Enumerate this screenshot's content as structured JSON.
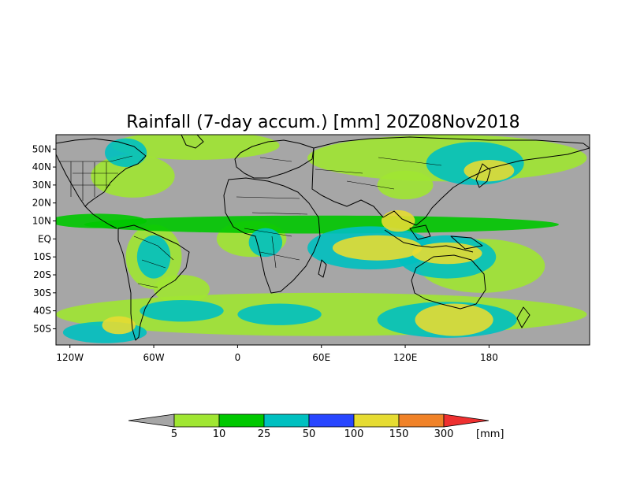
{
  "title": "Rainfall (7-day accum.) [mm] 20Z08Nov2018",
  "map": {
    "projection": "equirectangular",
    "lon_range": [
      -130,
      252
    ],
    "lat_range": [
      -59,
      58
    ],
    "land_color": "#a6a6a6",
    "ocean_dry_color": "#a6a6a6",
    "x_ticks": [
      {
        "lon": -120,
        "label": "120W"
      },
      {
        "lon": -60,
        "label": "60W"
      },
      {
        "lon": 0,
        "label": "0"
      },
      {
        "lon": 60,
        "label": "60E"
      },
      {
        "lon": 120,
        "label": "120E"
      },
      {
        "lon": 180,
        "label": "180"
      }
    ],
    "y_ticks": [
      {
        "lat": 50,
        "label": "50N"
      },
      {
        "lat": 40,
        "label": "40N"
      },
      {
        "lat": 30,
        "label": "30N"
      },
      {
        "lat": 20,
        "label": "20N"
      },
      {
        "lat": 10,
        "label": "10N"
      },
      {
        "lat": 0,
        "label": "EQ"
      },
      {
        "lat": -10,
        "label": "10S"
      },
      {
        "lat": -20,
        "label": "20S"
      },
      {
        "lat": -30,
        "label": "30S"
      },
      {
        "lat": -40,
        "label": "40S"
      },
      {
        "lat": -50,
        "label": "50S"
      }
    ]
  },
  "colorbar": {
    "unit": "[mm]",
    "under_color": "#a6a6a6",
    "over_color": "#ee3030",
    "bins": [
      {
        "color": "#a0e632"
      },
      {
        "color": "#00c800"
      },
      {
        "color": "#00c0c0"
      },
      {
        "color": "#2846ff"
      },
      {
        "color": "#e6dc32"
      },
      {
        "color": "#f08228"
      }
    ],
    "thresholds": [
      "5",
      "10",
      "25",
      "50",
      "100",
      "150",
      "300"
    ]
  },
  "rain_regions": [
    {
      "lon": 100,
      "lat": -5,
      "rlon": 32,
      "rlat": 7,
      "level": 5
    },
    {
      "lon": 150,
      "lat": -8,
      "rlon": 25,
      "rlat": 6,
      "level": 5
    },
    {
      "lon": 155,
      "lat": -45,
      "rlon": 28,
      "rlat": 9,
      "level": 5
    },
    {
      "lon": 180,
      "lat": 38,
      "rlon": 18,
      "rlat": 6,
      "level": 5
    },
    {
      "lon": -85,
      "lat": -48,
      "rlon": 12,
      "rlat": 5,
      "level": 5
    },
    {
      "lon": 115,
      "lat": 10,
      "rlon": 12,
      "rlat": 6,
      "level": 5
    },
    {
      "lon": 95,
      "lat": -5,
      "rlon": 45,
      "rlat": 12,
      "level": 3
    },
    {
      "lon": 150,
      "lat": -10,
      "rlon": 35,
      "rlat": 12,
      "level": 3
    },
    {
      "lon": 170,
      "lat": 42,
      "rlon": 35,
      "rlat": 12,
      "level": 3
    },
    {
      "lon": 150,
      "lat": -45,
      "rlon": 50,
      "rlat": 10,
      "level": 3
    },
    {
      "lon": -60,
      "lat": -10,
      "rlon": 12,
      "rlat": 12,
      "level": 3
    },
    {
      "lon": 20,
      "lat": -2,
      "rlon": 12,
      "rlat": 8,
      "level": 3
    },
    {
      "lon": -80,
      "lat": 48,
      "rlon": 15,
      "rlat": 8,
      "level": 3
    },
    {
      "lon": 30,
      "lat": -42,
      "rlon": 30,
      "rlat": 6,
      "level": 3
    },
    {
      "lon": -40,
      "lat": -40,
      "rlon": 30,
      "rlat": 6,
      "level": 3
    },
    {
      "lon": -95,
      "lat": -52,
      "rlon": 30,
      "rlat": 6,
      "level": 3
    },
    {
      "lon": 60,
      "lat": 8,
      "rlon": 170,
      "rlat": 5,
      "level": 2
    },
    {
      "lon": -100,
      "lat": 10,
      "rlon": 35,
      "rlat": 4,
      "level": 2
    },
    {
      "lon": 60,
      "lat": -42,
      "rlon": 190,
      "rlat": 12,
      "level": 1
    },
    {
      "lon": 150,
      "lat": 45,
      "rlon": 100,
      "rlat": 13,
      "level": 1
    },
    {
      "lon": -30,
      "lat": 52,
      "rlon": 60,
      "rlat": 8,
      "level": 1
    },
    {
      "lon": 10,
      "lat": 0,
      "rlon": 25,
      "rlat": 10,
      "level": 1
    },
    {
      "lon": -60,
      "lat": -10,
      "rlon": 20,
      "rlat": 18,
      "level": 1
    },
    {
      "lon": 175,
      "lat": -15,
      "rlon": 45,
      "rlat": 15,
      "level": 1
    },
    {
      "lon": -75,
      "lat": 35,
      "rlon": 30,
      "rlat": 12,
      "level": 1
    },
    {
      "lon": 120,
      "lat": 30,
      "rlon": 20,
      "rlat": 8,
      "level": 1
    },
    {
      "lon": -40,
      "lat": -28,
      "rlon": 20,
      "rlat": 8,
      "level": 1
    }
  ]
}
